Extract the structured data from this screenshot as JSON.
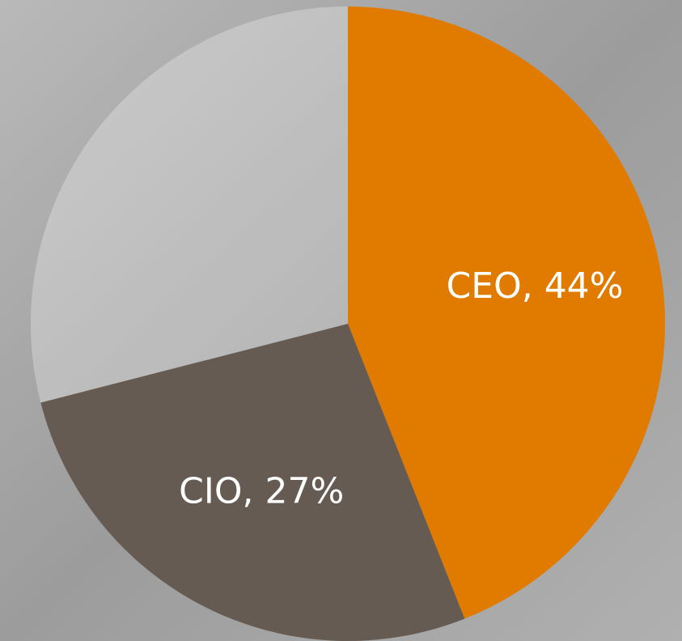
{
  "chart_data": {
    "type": "pie",
    "categories": [
      "CEO",
      "CIO",
      null
    ],
    "values": [
      44,
      27,
      29
    ],
    "value_labels": [
      "CEO, 44%",
      "CIO, 27%",
      null
    ],
    "colors": [
      "#e07b00",
      "#655b52",
      "rgba(255,255,255,0.28)"
    ]
  }
}
